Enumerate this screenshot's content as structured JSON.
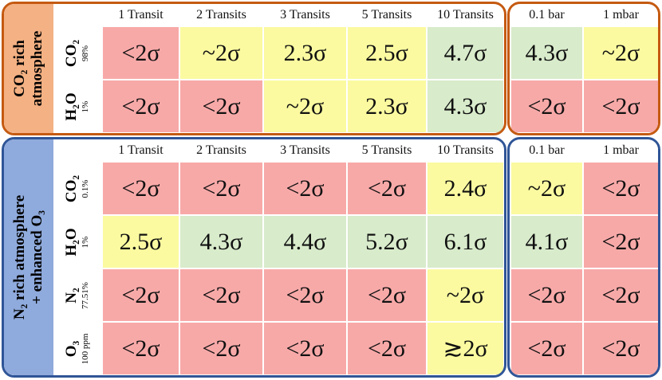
{
  "panels": [
    {
      "label": [
        "CO₂ rich",
        "atmosphere"
      ],
      "transit_headers": [
        "1 Transit",
        "2 Transits",
        "3 Transits",
        "5 Transits",
        "10 Transits"
      ],
      "pressure_headers": [
        "0.1 bar",
        "1 mbar"
      ],
      "border_color": "#c55a11",
      "label_color": "#f4b183",
      "rows": [
        {
          "molecule": "CO₂",
          "abundance": "98%",
          "transits": [
            "<2σ",
            "~2σ",
            "2.3σ",
            "2.5σ",
            "4.7σ"
          ],
          "pressures": [
            "4.3σ",
            "~2σ"
          ],
          "colors": [
            "#f7a9a8",
            "#fbfaa0",
            "#fbfaa0",
            "#fbfaa0",
            "#d8ebcb",
            "#d8ebcb",
            "#fbfaa0"
          ]
        },
        {
          "molecule": "H₂O",
          "abundance": "1%",
          "transits": [
            "<2σ",
            "<2σ",
            "~2σ",
            "2.3σ",
            "4.3σ"
          ],
          "pressures": [
            "<2σ",
            "<2σ"
          ],
          "colors": [
            "#f7a9a8",
            "#f7a9a8",
            "#fbfaa0",
            "#fbfaa0",
            "#d8ebcb",
            "#f7a9a8",
            "#f7a9a8"
          ]
        }
      ]
    },
    {
      "label": [
        "N₂ rich atmosphere",
        "+ enhanced O₃"
      ],
      "transit_headers": [
        "1 Transit",
        "2 Transits",
        "3 Transits",
        "5 Transits",
        "10 Transits"
      ],
      "pressure_headers": [
        "0.1 bar",
        "1 mbar"
      ],
      "border_color": "#2f5597",
      "label_color": "#8faadc",
      "rows": [
        {
          "molecule": "CO₂",
          "abundance": "0.1%",
          "transits": [
            "<2σ",
            "<2σ",
            "<2σ",
            "<2σ",
            "2.4σ"
          ],
          "pressures": [
            "~2σ",
            "<2σ"
          ],
          "colors": [
            "#f7a9a8",
            "#f7a9a8",
            "#f7a9a8",
            "#f7a9a8",
            "#fbfaa0",
            "#fbfaa0",
            "#f7a9a8"
          ]
        },
        {
          "molecule": "H₂O",
          "abundance": "1%",
          "transits": [
            "2.5σ",
            "4.3σ",
            "4.4σ",
            "5.2σ",
            "6.1σ"
          ],
          "pressures": [
            "4.1σ",
            "<2σ"
          ],
          "colors": [
            "#fbfaa0",
            "#d8ebcb",
            "#d8ebcb",
            "#d8ebcb",
            "#d8ebcb",
            "#d8ebcb",
            "#f7a9a8"
          ]
        },
        {
          "molecule": "N₂",
          "abundance": "77.51%",
          "transits": [
            "<2σ",
            "<2σ",
            "<2σ",
            "<2σ",
            "~2σ"
          ],
          "pressures": [
            "<2σ",
            "<2σ"
          ],
          "colors": [
            "#f7a9a8",
            "#f7a9a8",
            "#f7a9a8",
            "#f7a9a8",
            "#fbfaa0",
            "#f7a9a8",
            "#f7a9a8"
          ]
        },
        {
          "molecule": "O₃",
          "abundance": "100 ppm",
          "transits": [
            "<2σ",
            "<2σ",
            "<2σ",
            "<2σ",
            "≳2σ"
          ],
          "pressures": [
            "<2σ",
            "<2σ"
          ],
          "colors": [
            "#f7a9a8",
            "#f7a9a8",
            "#f7a9a8",
            "#f7a9a8",
            "#fbfaa0",
            "#f7a9a8",
            "#f7a9a8"
          ]
        }
      ]
    }
  ]
}
